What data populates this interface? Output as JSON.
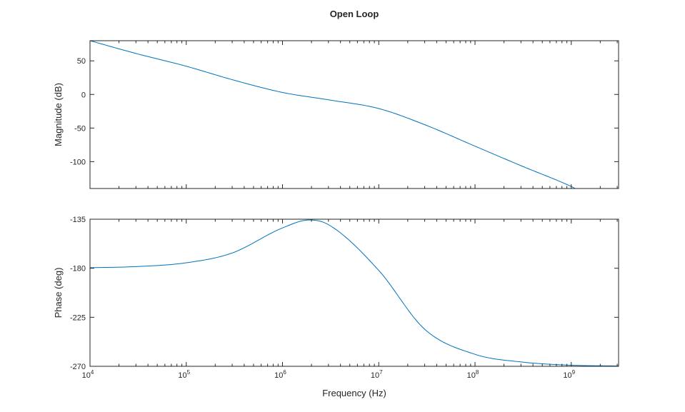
{
  "figure": {
    "title": "Open Loop",
    "xlabel": "Frequency (Hz)",
    "line_color": "#0072BD",
    "axis_color": "#262626"
  },
  "chart_data": [
    {
      "type": "line",
      "title": "Open Loop",
      "xlabel": "",
      "ylabel": "Magnitude (dB)",
      "xscale": "log",
      "xlim": [
        10000,
        3100000000
      ],
      "ylim": [
        -140,
        80
      ],
      "yticks": [
        50,
        0,
        -50,
        -100
      ],
      "xticks": [
        10000,
        100000,
        1000000,
        10000000,
        100000000,
        1000000000
      ],
      "xtick_labels": [
        "10^4",
        "10^5",
        "10^6",
        "10^7",
        "10^8",
        "10^9"
      ],
      "grid": false,
      "x": [
        10000,
        30000,
        100000,
        300000,
        1000000,
        3000000,
        10000000,
        30000000,
        100000000,
        300000000,
        1000000000,
        1100000000
      ],
      "values": [
        80,
        61,
        42,
        22,
        3,
        -8,
        -21,
        -45,
        -77,
        -106,
        -137,
        -140
      ]
    },
    {
      "type": "line",
      "ylabel": "Phase (deg)",
      "xlabel": "Frequency (Hz)",
      "xscale": "log",
      "xlim": [
        10000,
        3100000000
      ],
      "ylim": [
        -270,
        -135
      ],
      "yticks": [
        -135,
        -180,
        -225,
        -270
      ],
      "xticks": [
        10000,
        100000,
        1000000,
        10000000,
        100000000,
        1000000000
      ],
      "xtick_labels": [
        "10^4",
        "10^5",
        "10^6",
        "10^7",
        "10^8",
        "10^9"
      ],
      "grid": false,
      "x": [
        10000,
        30000,
        100000,
        300000,
        1000000,
        1900000,
        3000000,
        10000000,
        30000000,
        100000000,
        300000000,
        1000000000,
        3100000000
      ],
      "values": [
        -179.5,
        -178.5,
        -175,
        -166,
        -143,
        -135.7,
        -140,
        -182,
        -236,
        -259,
        -266,
        -269,
        -269.7
      ]
    }
  ]
}
